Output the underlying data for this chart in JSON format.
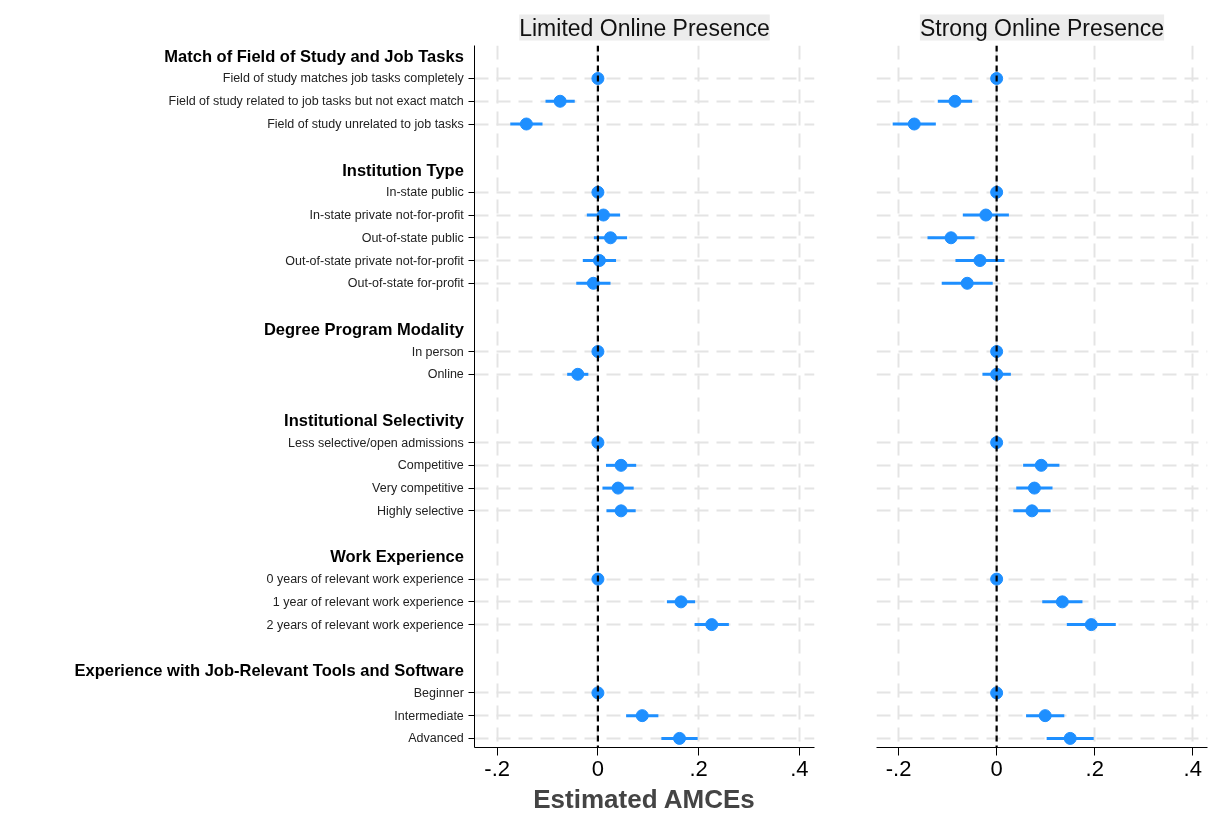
{
  "chart_data": [
    {
      "type": "scatter",
      "title": "Limited Online Presence",
      "xlabel": "Estimated AMCEs",
      "orientation": "horizontal",
      "marker": "circle",
      "grid": true,
      "categories": [
        "Match of Field of Study and Job Tasks",
        "Field of study matches job tasks completely",
        "Field of study related to job tasks but not exact match",
        "Field of study unrelated to job tasks",
        "Institution Type",
        "In-state public",
        "In-state private not-for-profit",
        "Out-of-state public",
        "Out-of-state private not-for-profit",
        "Out-of-state for-profit",
        "Degree Program Modality",
        "In person",
        "Online",
        "Institutional Selectivity",
        "Less selective/open admissions",
        "Competitive",
        "Very competitive",
        "Highly selective",
        "Work Experience",
        "0 years of relevant work experience",
        "1 year of relevant work experience",
        "2 years of relevant work experience",
        "Experience with Job-Relevant Tools and Software",
        "Beginner",
        "Intermediate",
        "Advanced"
      ],
      "xlim": [
        -0.245,
        0.43
      ],
      "xticks": [
        {
          "value": -0.2,
          "label": "-.2"
        },
        0,
        {
          "value": 0.2,
          "label": ".2"
        },
        {
          "value": 0.4,
          "label": ".4"
        }
      ],
      "ref_lines": [
        {
          "axis": "x",
          "value": 0,
          "color": "#000000",
          "line_style": "dashed"
        }
      ],
      "series": [
        {
          "color": "#1e8fff",
          "values": [
            null,
            0,
            -0.075,
            -0.142,
            null,
            0,
            0.011,
            0.025,
            0.003,
            -0.009,
            null,
            0,
            -0.04,
            null,
            0,
            0.046,
            0.04,
            0.046,
            null,
            0,
            0.165,
            0.226,
            null,
            0,
            0.088,
            0.162
          ],
          "errors": [
            null,
            null,
            0.029,
            0.032,
            null,
            null,
            0.033,
            0.033,
            0.033,
            0.034,
            null,
            null,
            0.021,
            null,
            null,
            0.03,
            0.031,
            0.029,
            null,
            null,
            0.028,
            0.034,
            null,
            null,
            0.032,
            0.036
          ]
        }
      ]
    },
    {
      "type": "scatter",
      "title": "Strong Online Presence",
      "orientation": "horizontal",
      "marker": "circle",
      "grid": true,
      "tick_labels": "x",
      "categories": [
        "Match of Field of Study and Job Tasks",
        "Field of study matches job tasks completely",
        "Field of study related to job tasks but not exact match",
        "Field of study unrelated to job tasks",
        "Institution Type",
        "In-state public",
        "In-state private not-for-profit",
        "Out-of-state public",
        "Out-of-state private not-for-profit",
        "Out-of-state for-profit",
        "Degree Program Modality",
        "In person",
        "Online",
        "Institutional Selectivity",
        "Less selective/open admissions",
        "Competitive",
        "Very competitive",
        "Highly selective",
        "Work Experience",
        "0 years of relevant work experience",
        "1 year of relevant work experience",
        "2 years of relevant work experience",
        "Experience with Job-Relevant Tools and Software",
        "Beginner",
        "Intermediate",
        "Advanced"
      ],
      "xlim": [
        -0.245,
        0.43
      ],
      "xticks": [
        {
          "value": -0.2,
          "label": "-.2"
        },
        0,
        {
          "value": 0.2,
          "label": ".2"
        },
        {
          "value": 0.4,
          "label": ".4"
        }
      ],
      "ref_lines": [
        {
          "axis": "x",
          "value": 0,
          "color": "#000000",
          "line_style": "dashed"
        }
      ],
      "series": [
        {
          "color": "#1e8fff",
          "values": [
            null,
            0,
            -0.085,
            -0.168,
            null,
            0,
            -0.022,
            -0.093,
            -0.034,
            -0.06,
            null,
            0,
            0,
            null,
            0,
            0.091,
            0.077,
            0.072,
            null,
            0,
            0.134,
            0.193,
            null,
            0,
            0.099,
            0.15
          ],
          "errors": [
            null,
            null,
            0.035,
            0.044,
            null,
            null,
            0.047,
            0.048,
            0.05,
            0.052,
            null,
            null,
            0.029,
            null,
            null,
            0.037,
            0.037,
            0.038,
            null,
            null,
            0.041,
            0.05,
            null,
            null,
            0.039,
            0.048
          ]
        }
      ]
    }
  ]
}
